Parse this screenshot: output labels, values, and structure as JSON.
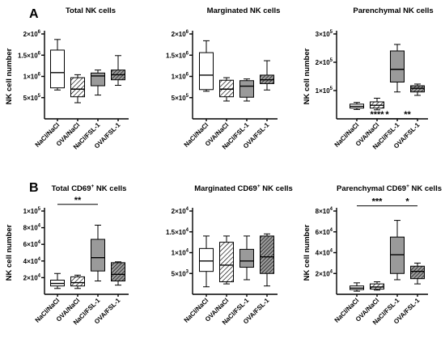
{
  "chart_data": [
    {
      "panel": "A",
      "type": "box",
      "title": "Total NK cells",
      "ylabel": "NK cell number",
      "categories": [
        "NaCl/NaCl",
        "OVA/NaCl",
        "NaCl/FSL-1",
        "OVA/FSL-1"
      ],
      "yticks": [
        {
          "v": 500000,
          "base": "5×10",
          "exp": "5"
        },
        {
          "v": 1000000,
          "base": "1×10",
          "exp": "6"
        },
        {
          "v": 1500000,
          "base": "1.5×10",
          "exp": "6"
        },
        {
          "v": 2000000,
          "base": "2×10",
          "exp": "6"
        }
      ],
      "ylim": [
        0,
        2000000
      ],
      "boxes": [
        {
          "min": 680000,
          "q1": 730000,
          "median": 1090000,
          "q3": 1620000,
          "max": 1870000
        },
        {
          "min": 380000,
          "q1": 520000,
          "median": 700000,
          "q3": 970000,
          "max": 1040000
        },
        {
          "min": 560000,
          "q1": 780000,
          "median": 1010000,
          "q3": 1080000,
          "max": 1150000
        },
        {
          "min": 790000,
          "q1": 920000,
          "median": 1040000,
          "q3": 1150000,
          "max": 1490000
        }
      ],
      "significance": []
    },
    {
      "panel": "",
      "type": "box",
      "title": "Marginated NK cells",
      "ylabel": "",
      "categories": [
        "NaCl/NaCl",
        "OVA/NaCl",
        "NaCl/FSL-1",
        "OVA/FSL-1"
      ],
      "yticks": [
        {
          "v": 500000,
          "base": "5×10",
          "exp": "5"
        },
        {
          "v": 1000000,
          "base": "1×10",
          "exp": "6"
        },
        {
          "v": 1500000,
          "base": "1.5×10",
          "exp": "6"
        },
        {
          "v": 2000000,
          "base": "2×10",
          "exp": "6"
        }
      ],
      "ylim": [
        0,
        2000000
      ],
      "boxes": [
        {
          "min": 650000,
          "q1": 690000,
          "median": 1030000,
          "q3": 1560000,
          "max": 1840000
        },
        {
          "min": 420000,
          "q1": 520000,
          "median": 700000,
          "q3": 910000,
          "max": 970000
        },
        {
          "min": 420000,
          "q1": 510000,
          "median": 770000,
          "q3": 900000,
          "max": 940000
        },
        {
          "min": 680000,
          "q1": 830000,
          "median": 920000,
          "q3": 1030000,
          "max": 1370000
        }
      ],
      "significance": []
    },
    {
      "panel": "",
      "type": "box",
      "title": "Parenchymal NK cells",
      "ylabel": "NK cell number",
      "categories": [
        "NaCl/NaCl",
        "OVA/NaCl",
        "NaCl/FSL-1",
        "OVA/FSL-1"
      ],
      "yticks": [
        {
          "v": 100000,
          "base": "1×10",
          "exp": "5"
        },
        {
          "v": 200000,
          "base": "2×10",
          "exp": "5"
        },
        {
          "v": 300000,
          "base": "3×10",
          "exp": "5"
        }
      ],
      "ylim": [
        0,
        300000
      ],
      "boxes": [
        {
          "min": 33000,
          "q1": 38000,
          "median": 44000,
          "q3": 52000,
          "max": 58000
        },
        {
          "min": 32000,
          "q1": 38000,
          "median": 48000,
          "q3": 60000,
          "max": 73000
        },
        {
          "min": 95000,
          "q1": 130000,
          "median": 175000,
          "q3": 240000,
          "max": 263000
        },
        {
          "min": 83000,
          "q1": 95000,
          "median": 108000,
          "q3": 117000,
          "max": 123000
        }
      ],
      "significance": [
        {
          "from": 0,
          "to": 3,
          "label": "*",
          "y": 345
        },
        {
          "from": 0,
          "to": 2,
          "label": "****",
          "y": 315
        },
        {
          "from": 2,
          "to": 3,
          "label": "**",
          "y": 315
        }
      ]
    },
    {
      "panel": "B",
      "type": "box",
      "title": "Total CD69⁺ NK cells",
      "ylabel": "NK cell number",
      "categories": [
        "NaCl/NaCl",
        "OVA/NaCl",
        "NaCl/FSL-1",
        "OVA/FSL-1"
      ],
      "yticks": [
        {
          "v": 20000,
          "base": "2×10",
          "exp": "4"
        },
        {
          "v": 40000,
          "base": "4×10",
          "exp": "4"
        },
        {
          "v": 60000,
          "base": "6×10",
          "exp": "4"
        },
        {
          "v": 80000,
          "base": "8×10",
          "exp": "4"
        },
        {
          "v": 100000,
          "base": "1×10",
          "exp": "5"
        }
      ],
      "ylim": [
        0,
        100000
      ],
      "boxes": [
        {
          "min": 7000,
          "q1": 10000,
          "median": 13000,
          "q3": 17000,
          "max": 25000
        },
        {
          "min": 7000,
          "q1": 10000,
          "median": 14000,
          "q3": 21000,
          "max": 23000
        },
        {
          "min": 16000,
          "q1": 28000,
          "median": 44000,
          "q3": 66000,
          "max": 83000
        },
        {
          "min": 11000,
          "q1": 16000,
          "median": 24000,
          "q3": 38000,
          "max": 39000
        }
      ],
      "significance": [
        {
          "from": 0,
          "to": 2,
          "label": "**",
          "y": 108000
        }
      ]
    },
    {
      "panel": "",
      "type": "box",
      "title": "Marginated CD69⁺ NK cells",
      "ylabel": "",
      "categories": [
        "NaCl/NaCl",
        "OVA/NaCl",
        "NaCl/FSL-1",
        "OVA/FSL-1"
      ],
      "yticks": [
        {
          "v": 5000,
          "base": "5×10",
          "exp": "3"
        },
        {
          "v": 10000,
          "base": "1×10",
          "exp": "4"
        },
        {
          "v": 15000,
          "base": "1.5×10",
          "exp": "4"
        },
        {
          "v": 20000,
          "base": "2×10",
          "exp": "4"
        }
      ],
      "ylim": [
        0,
        20000
      ],
      "boxes": [
        {
          "min": 1800,
          "q1": 5500,
          "median": 8000,
          "q3": 11000,
          "max": 14000
        },
        {
          "min": 2500,
          "q1": 3000,
          "median": 7000,
          "q3": 12500,
          "max": 14000
        },
        {
          "min": 3500,
          "q1": 6500,
          "median": 8000,
          "q3": 10800,
          "max": 14000
        },
        {
          "min": 2000,
          "q1": 5000,
          "median": 9000,
          "q3": 14000,
          "max": 14500
        }
      ],
      "significance": []
    },
    {
      "panel": "",
      "type": "box",
      "title": "Parenchymal CD69⁺ NK cells",
      "ylabel": "NK cell number",
      "categories": [
        "NaCl/NaCl",
        "OVA/NaCl",
        "NaCl/FSL-1",
        "OVA/FSL-1"
      ],
      "yticks": [
        {
          "v": 20000,
          "base": "2×10",
          "exp": "4"
        },
        {
          "v": 40000,
          "base": "4×10",
          "exp": "4"
        },
        {
          "v": 60000,
          "base": "6×10",
          "exp": "4"
        },
        {
          "v": 80000,
          "base": "8×10",
          "exp": "4"
        }
      ],
      "ylim": [
        0,
        80000
      ],
      "boxes": [
        {
          "min": 3000,
          "q1": 4500,
          "median": 6000,
          "q3": 8000,
          "max": 11000
        },
        {
          "min": 4000,
          "q1": 5000,
          "median": 7000,
          "q3": 10000,
          "max": 12000
        },
        {
          "min": 14000,
          "q1": 20000,
          "median": 38000,
          "q3": 55000,
          "max": 71000
        },
        {
          "min": 10000,
          "q1": 15000,
          "median": 22000,
          "q3": 27000,
          "max": 30000
        }
      ],
      "significance": [
        {
          "from": 0,
          "to": 2,
          "label": "***",
          "y": 85000
        },
        {
          "from": 2,
          "to": 3,
          "label": "*",
          "y": 85000
        }
      ]
    }
  ]
}
